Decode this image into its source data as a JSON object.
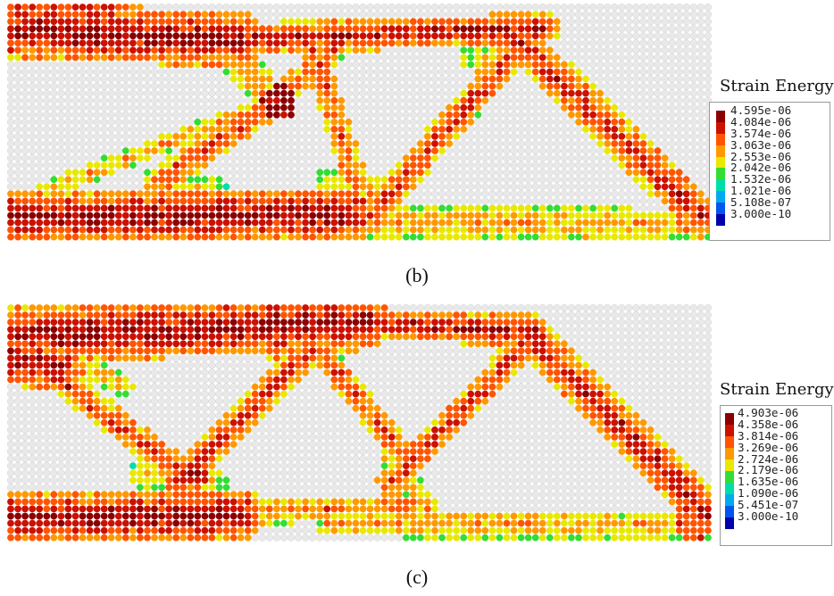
{
  "panels": [
    {
      "caption": "(b)",
      "legend": {
        "title": "Strain Energy",
        "values": [
          "4.595e-06",
          "4.084e-06",
          "3.574e-06",
          "3.063e-06",
          "2.553e-06",
          "2.042e-06",
          "1.532e-06",
          "1.021e-06",
          "5.108e-07",
          "3.000e-10"
        ]
      },
      "colors": [
        "#8b0000",
        "#cc1100",
        "#ff5500",
        "#ff9900",
        "#e8e800",
        "#33dd33",
        "#00ddaa",
        "#00aaee",
        "#0055ee",
        "#0000aa"
      ]
    },
    {
      "caption": "(c)",
      "legend": {
        "title": "Strain Energy",
        "values": [
          "4.903e-06",
          "4.358e-06",
          "3.814e-06",
          "3.269e-06",
          "2.724e-06",
          "2.179e-06",
          "1.635e-06",
          "1.090e-06",
          "5.451e-07",
          "3.000e-10"
        ]
      },
      "colors": [
        "#8b0000",
        "#cc1100",
        "#ff5500",
        "#ff9900",
        "#e8e800",
        "#33dd33",
        "#00ddaa",
        "#00aaee",
        "#0055ee",
        "#0000aa"
      ]
    }
  ]
}
